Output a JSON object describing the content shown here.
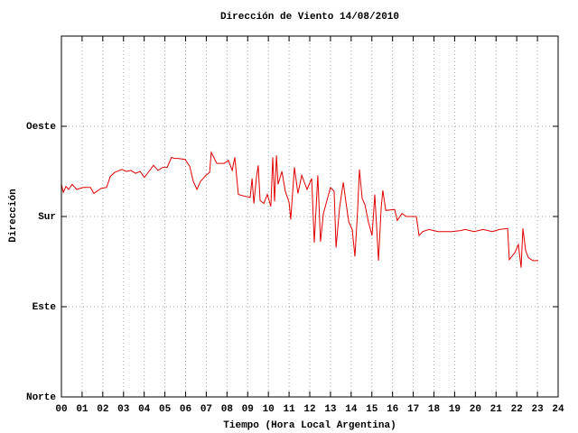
{
  "chart_data": {
    "type": "line",
    "title": "Dirección de Viento 14/08/2010",
    "x_label": "Tiempo (Hora Local Argentina)",
    "y_label": "Dirección",
    "xlim": [
      0,
      24
    ],
    "ylim": [
      0,
      360
    ],
    "grid": true,
    "xticks": [
      {
        "value": 0,
        "label": "00"
      },
      {
        "value": 1,
        "label": "01"
      },
      {
        "value": 2,
        "label": "02"
      },
      {
        "value": 3,
        "label": "03"
      },
      {
        "value": 4,
        "label": "04"
      },
      {
        "value": 5,
        "label": "05"
      },
      {
        "value": 6,
        "label": "06"
      },
      {
        "value": 7,
        "label": "07"
      },
      {
        "value": 8,
        "label": "08"
      },
      {
        "value": 9,
        "label": "09"
      },
      10,
      11,
      12,
      13,
      14,
      15,
      16,
      17,
      18,
      19,
      20,
      21,
      22,
      23,
      24
    ],
    "yticks": [
      {
        "value": 0,
        "label": "Norte"
      },
      {
        "value": 90,
        "label": "Este"
      },
      {
        "value": 180,
        "label": "Sur"
      },
      {
        "value": 270,
        "label": "Oeste"
      },
      360
    ],
    "series": [
      {
        "color": "#e00000",
        "x": [
          0.0,
          0.09,
          0.22,
          0.35,
          0.52,
          0.74,
          1.05,
          1.4,
          1.57,
          1.92,
          2.18,
          2.36,
          2.58,
          2.92,
          3.14,
          3.36,
          3.58,
          3.8,
          4.01,
          4.23,
          4.45,
          4.67,
          4.89,
          5.11,
          5.32,
          5.45,
          5.63,
          5.98,
          6.2,
          6.37,
          6.55,
          6.72,
          6.98,
          7.16,
          7.24,
          7.51,
          7.86,
          8.07,
          8.25,
          8.38,
          8.55,
          8.9,
          9.12,
          9.21,
          9.3,
          9.43,
          9.51,
          9.6,
          9.78,
          9.95,
          10.12,
          10.21,
          10.3,
          10.39,
          10.47,
          10.65,
          10.82,
          11.0,
          11.08,
          11.26,
          11.43,
          11.61,
          11.87,
          12.09,
          12.22,
          12.39,
          12.52,
          12.66,
          12.83,
          13.0,
          13.18,
          13.27,
          13.44,
          13.62,
          13.75,
          13.88,
          14.05,
          14.18,
          14.31,
          14.4,
          14.53,
          14.66,
          14.84,
          15.01,
          15.14,
          15.32,
          15.45,
          15.53,
          15.67,
          16.1,
          16.23,
          16.45,
          16.67,
          17.15,
          17.28,
          17.46,
          17.76,
          18.2,
          18.85,
          19.29,
          19.51,
          19.94,
          20.38,
          20.82,
          21.17,
          21.56,
          21.64,
          21.91,
          22.08,
          22.21,
          22.3,
          22.43,
          22.56,
          22.78,
          23.04
        ],
        "values": [
          212,
          204,
          210,
          207,
          212,
          207,
          209,
          209,
          203,
          208,
          209,
          220,
          224,
          227,
          225,
          226,
          223,
          225,
          219,
          225,
          231,
          226,
          229,
          229,
          239,
          238,
          238,
          237,
          230,
          215,
          207,
          215,
          221,
          224,
          244,
          233,
          233,
          236,
          226,
          239,
          202,
          200,
          199,
          218,
          193,
          220,
          231,
          196,
          193,
          202,
          190,
          239,
          195,
          241,
          212,
          225,
          205,
          194,
          177,
          229,
          203,
          221,
          207,
          218,
          154,
          221,
          155,
          183,
          196,
          209,
          205,
          149,
          189,
          214,
          194,
          175,
          167,
          140,
          185,
          227,
          198,
          192,
          174,
          161,
          202,
          136,
          189,
          206,
          186,
          187,
          176,
          183,
          180,
          180,
          161,
          165,
          167,
          165,
          165,
          166,
          167,
          165,
          167,
          165,
          167,
          168,
          137,
          144,
          152,
          129,
          168,
          146,
          139,
          136,
          136
        ]
      }
    ]
  }
}
